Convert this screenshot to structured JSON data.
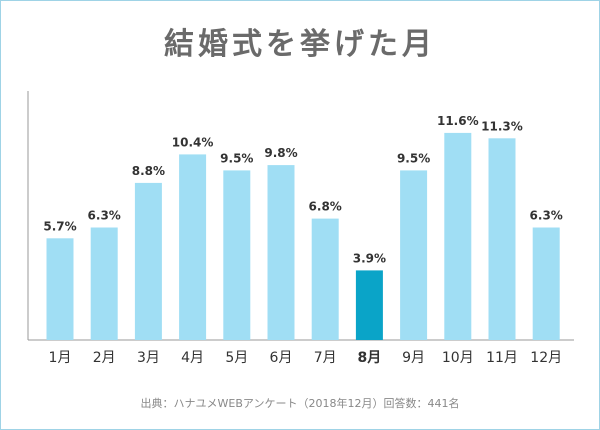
{
  "chart_data": {
    "type": "bar",
    "title": "結婚式を挙げた月",
    "source": "出典：ハナユメWEBアンケート（2018年12月）回答数：441名",
    "categories": [
      "1月",
      "2月",
      "3月",
      "4月",
      "5月",
      "6月",
      "7月",
      "8月",
      "9月",
      "10月",
      "11月",
      "12月"
    ],
    "values": [
      5.7,
      6.3,
      8.8,
      10.4,
      9.5,
      9.8,
      6.8,
      3.9,
      9.5,
      11.6,
      11.3,
      6.3
    ],
    "value_labels": [
      "5.7%",
      "6.3%",
      "8.8%",
      "10.4%",
      "9.5%",
      "9.8%",
      "6.8%",
      "3.9%",
      "9.5%",
      "11.6%",
      "11.3%",
      "6.3%"
    ],
    "highlight_category": "8月",
    "ylim": [
      0,
      12
    ],
    "grid": false,
    "colors": {
      "bar": "#a0def4",
      "bar_highlight": "#0aa4c8",
      "axis": "#999999"
    }
  }
}
